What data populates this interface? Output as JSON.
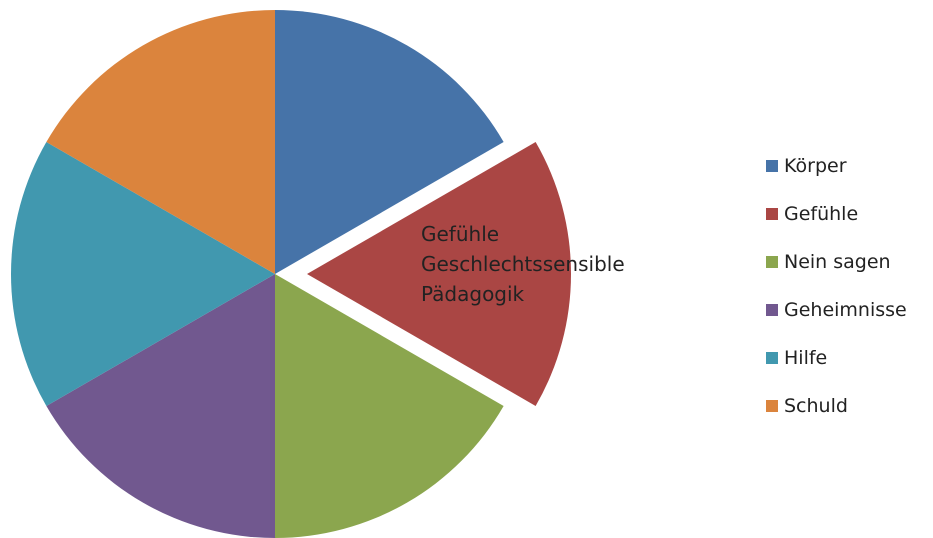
{
  "chart_data": {
    "type": "pie",
    "title": "",
    "categories": [
      "Körper",
      "Gefühle",
      "Nein sagen",
      "Geheimnisse",
      "Hilfe",
      "Schuld"
    ],
    "values": [
      1,
      1,
      1,
      1,
      1,
      1
    ],
    "colors": [
      "#4673A8",
      "#AA4644",
      "#8BA64E",
      "#71588F",
      "#4198AF",
      "#DB843D"
    ],
    "exploded_slice": "Gefühle",
    "slice_label_lines": [
      "Gefühle",
      "Geschlechtssensible",
      "Pädagogik"
    ],
    "legend": {
      "placement": "right",
      "entries": [
        "Körper",
        "Gefühle",
        "Nein sagen",
        "Geheimnisse",
        "Hilfe",
        "Schuld"
      ]
    }
  }
}
